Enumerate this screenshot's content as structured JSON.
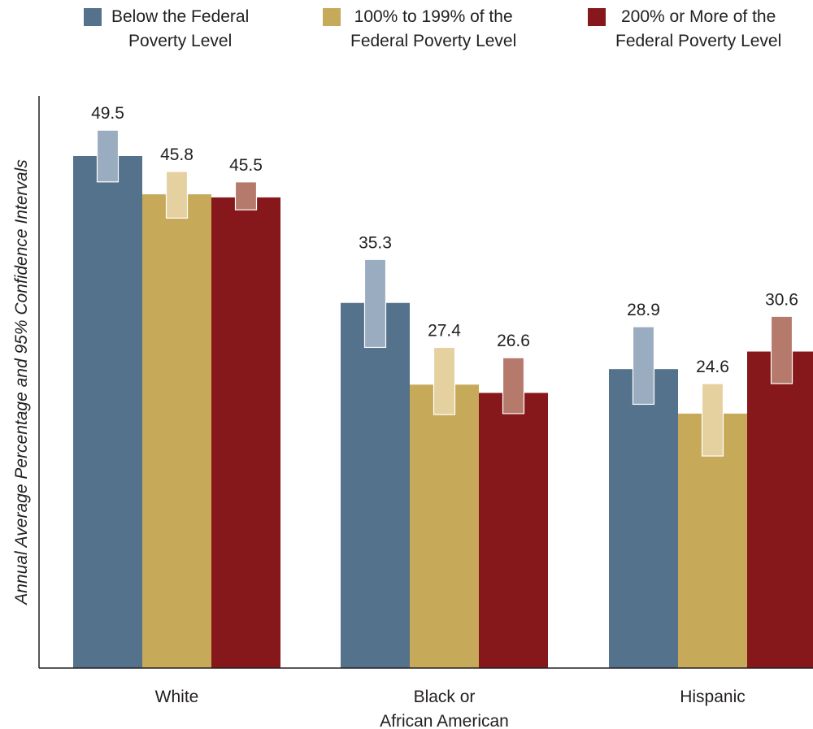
{
  "chart_data": {
    "type": "bar",
    "ylabel": "Annual Average Percentage and 95% Confidence Intervals",
    "ylim": [
      0,
      56
    ],
    "categories": [
      "White",
      "Black or\nAfrican American",
      "Hispanic"
    ],
    "series": [
      {
        "name": "Below the Federal\nPoverty Level",
        "color": "#54728c",
        "ci_color": "#9aacbf",
        "values": [
          49.5,
          35.3,
          28.9
        ],
        "ci": [
          [
            47.0,
            52.0
          ],
          [
            31.0,
            39.5
          ],
          [
            25.5,
            33.0
          ]
        ]
      },
      {
        "name": "100% to 199% of the\nFederal Poverty Level",
        "color": "#c7a95a",
        "ci_color": "#e5d0a0",
        "values": [
          45.8,
          27.4,
          24.6
        ],
        "ci": [
          [
            43.5,
            48.0
          ],
          [
            24.5,
            31.0
          ],
          [
            20.5,
            27.5
          ]
        ]
      },
      {
        "name": "200% or More of the\nFederal Poverty Level",
        "color": "#86171b",
        "ci_color": "#b57a6c",
        "values": [
          45.5,
          26.6,
          30.6
        ],
        "ci": [
          [
            44.3,
            47.0
          ],
          [
            24.6,
            30.0
          ],
          [
            27.5,
            34.0
          ]
        ]
      }
    ],
    "legend_position": "top",
    "grid": false
  }
}
